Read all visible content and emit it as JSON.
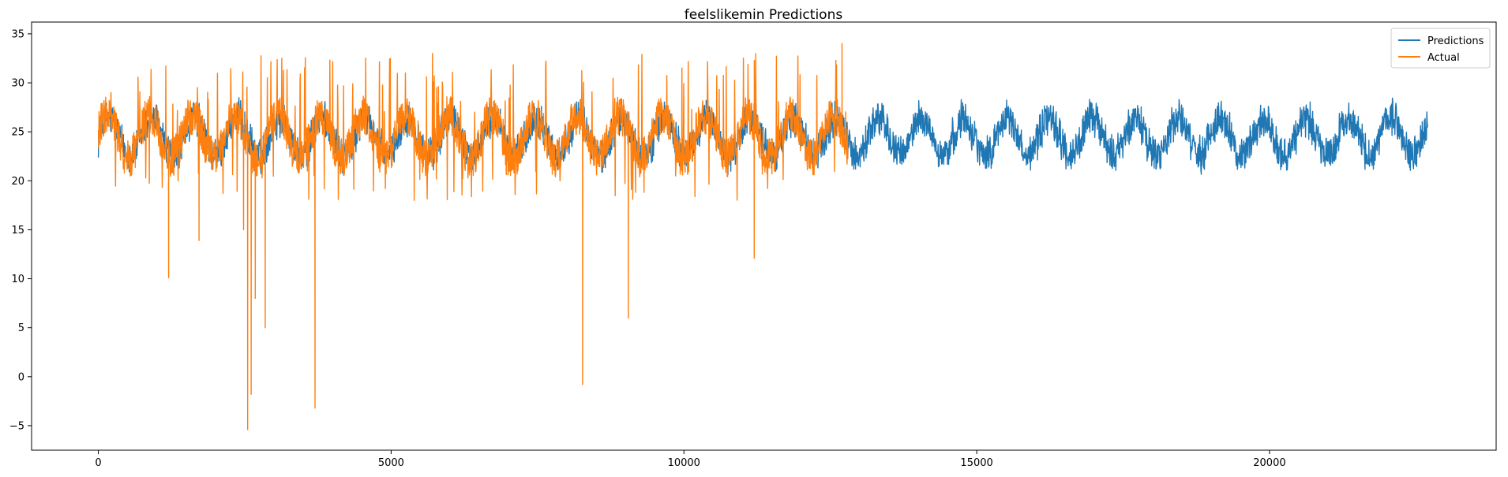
{
  "chart_data": {
    "type": "line",
    "title": "feelslikemin Predictions",
    "xlabel": "",
    "ylabel": "",
    "xlim": [
      -1140,
      23870
    ],
    "ylim": [
      -7.5,
      36.2
    ],
    "x_ticks": [
      0,
      5000,
      10000,
      15000,
      20000
    ],
    "y_ticks": [
      -5,
      0,
      5,
      10,
      15,
      20,
      25,
      30,
      35
    ],
    "grid": false,
    "legend_position": "top-right",
    "series": [
      {
        "name": "Predictions",
        "color": "#1f77b4",
        "x_range": [
          0,
          22700
        ],
        "summary": {
          "center": 24.5,
          "min": 20.0,
          "max": 29.0,
          "seasonal_period": 730
        }
      },
      {
        "name": "Actual",
        "color": "#ff7f0e",
        "x_range": [
          0,
          12800
        ],
        "summary": {
          "center": 24.5,
          "min": -5.4,
          "max": 34.0
        },
        "notable_points": [
          {
            "x": 1200,
            "y": 10.1
          },
          {
            "x": 1720,
            "y": 13.9
          },
          {
            "x": 2480,
            "y": 15.0
          },
          {
            "x": 2550,
            "y": -5.4
          },
          {
            "x": 2610,
            "y": -1.8
          },
          {
            "x": 2680,
            "y": 8.0
          },
          {
            "x": 2850,
            "y": 5.0
          },
          {
            "x": 3700,
            "y": -3.2
          },
          {
            "x": 8270,
            "y": -0.8
          },
          {
            "x": 9050,
            "y": 6.0
          },
          {
            "x": 11200,
            "y": 12.1
          },
          {
            "x": 12700,
            "y": 34.0
          }
        ]
      }
    ]
  }
}
